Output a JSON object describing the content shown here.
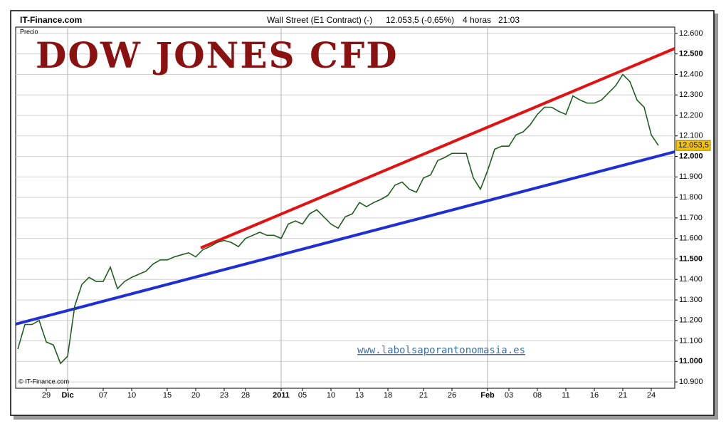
{
  "header": {
    "site": "IT-Finance.com",
    "instrument": "Wall Street (E1 Contract) (-)",
    "quote": "12.053,5 (-0,65%)",
    "period": "4 horas",
    "time": "21:03"
  },
  "chart_data": {
    "type": "line",
    "title": "DOW JONES CFD",
    "y_label": "Precio",
    "watermark": "www.labolsaporantonomasia.es",
    "copyright": "© IT-Finance.com",
    "last_price_label": "12.053,5",
    "categories": [
      null,
      null,
      null,
      null,
      "29",
      null,
      null,
      "Dic",
      null,
      null,
      null,
      null,
      "07",
      null,
      null,
      null,
      "10",
      null,
      null,
      null,
      null,
      "15",
      null,
      null,
      null,
      "20",
      null,
      null,
      null,
      "23",
      null,
      null,
      "28",
      null,
      null,
      null,
      null,
      "2011",
      null,
      null,
      "05",
      null,
      null,
      null,
      "10",
      null,
      null,
      null,
      "13",
      null,
      null,
      null,
      "18",
      null,
      null,
      null,
      null,
      "21",
      null,
      null,
      null,
      "26",
      null,
      null,
      null,
      null,
      "Feb",
      null,
      null,
      "03",
      null,
      null,
      null,
      "08",
      null,
      null,
      null,
      "11",
      null,
      null,
      null,
      "16",
      null,
      null,
      null,
      "21",
      null,
      null,
      null,
      "24",
      null
    ],
    "series": [
      {
        "color": "#1f5f1f",
        "values": [
          11060,
          11180,
          11180,
          11200,
          11095,
          11080,
          10990,
          11025,
          11270,
          11375,
          11410,
          11390,
          11390,
          11460,
          11355,
          11390,
          11410,
          11425,
          11440,
          11475,
          11495,
          11495,
          11510,
          11520,
          11530,
          11510,
          11545,
          11560,
          11580,
          11590,
          11580,
          11560,
          11600,
          11615,
          11630,
          11615,
          11615,
          11600,
          11670,
          11685,
          11670,
          11720,
          11740,
          11705,
          11670,
          11650,
          11705,
          11720,
          11775,
          11755,
          11775,
          11790,
          11810,
          11860,
          11875,
          11840,
          11825,
          11895,
          11910,
          11980,
          11995,
          12015,
          12015,
          12015,
          11895,
          11840,
          11930,
          12035,
          12050,
          12050,
          12105,
          12120,
          12155,
          12205,
          12240,
          12240,
          12220,
          12205,
          12295,
          12275,
          12260,
          12260,
          12275,
          12310,
          12345,
          12400,
          12365,
          12275,
          12240,
          12105,
          12053.5
        ]
      }
    ],
    "ylim": [
      10869,
      12631
    ],
    "yticks": [
      {
        "value": 10900,
        "label": "10.900"
      },
      {
        "value": 11000,
        "label": "11.000"
      },
      {
        "value": 11100,
        "label": "11.100"
      },
      {
        "value": 11200,
        "label": "11.200"
      },
      {
        "value": 11300,
        "label": "11.300"
      },
      {
        "value": 11400,
        "label": "11.400"
      },
      {
        "value": 11500,
        "label": "11.500"
      },
      {
        "value": 11600,
        "label": "11.600"
      },
      {
        "value": 11700,
        "label": "11.700"
      },
      {
        "value": 11800,
        "label": "11.800"
      },
      {
        "value": 11900,
        "label": "11.900"
      },
      {
        "value": 12000,
        "label": "12.000"
      },
      {
        "value": 12100,
        "label": "12.100"
      },
      {
        "value": 12200,
        "label": "12.200"
      },
      {
        "value": 12300,
        "label": "12.300"
      },
      {
        "value": 12400,
        "label": "12.400"
      },
      {
        "value": 12500,
        "label": "12.500"
      },
      {
        "value": 12600,
        "label": "12.600"
      }
    ],
    "grid": true
  }
}
